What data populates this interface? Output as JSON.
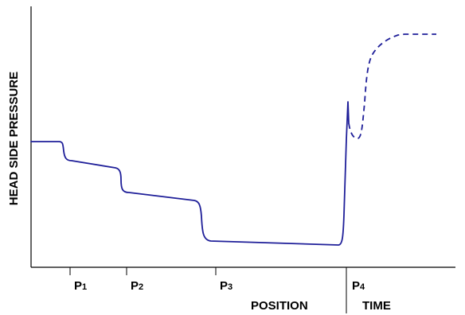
{
  "chart_data": {
    "type": "line",
    "ylabel": "HEAD SIDE PRESSURE",
    "xlabel_position": "POSITION",
    "xlabel_time": "TIME",
    "grid": false,
    "markers": [
      {
        "label": "P",
        "sub": "1"
      },
      {
        "label": "P",
        "sub": "2"
      },
      {
        "label": "P",
        "sub": "3"
      },
      {
        "label": "P",
        "sub": "4"
      }
    ],
    "colors": {
      "series": "#1f1f99",
      "axis": "#000000"
    }
  }
}
